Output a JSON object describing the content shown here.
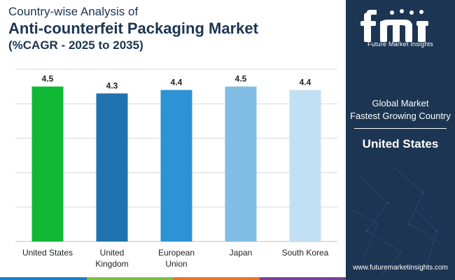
{
  "header": {
    "subtitle": "Country-wise Analysis of",
    "title": "Anti-counterfeit Packaging Market",
    "cagr_line": "(%CAGR - 2025 to 2035)"
  },
  "chart_data": {
    "type": "bar",
    "categories": [
      [
        "United States"
      ],
      [
        "United",
        "Kingdom"
      ],
      [
        "European",
        "Union"
      ],
      [
        "Japan"
      ],
      [
        "South Korea"
      ]
    ],
    "values": [
      4.5,
      4.3,
      4.4,
      4.5,
      4.4
    ],
    "value_labels": [
      "4.5",
      "4.3",
      "4.4",
      "4.5",
      "4.4"
    ],
    "colors": [
      "#10b836",
      "#1f72ae",
      "#2e93d6",
      "#82bde3",
      "#c2e0f3"
    ],
    "ylim": [
      0,
      5
    ],
    "gridlines": [
      1,
      2,
      3,
      4,
      5
    ],
    "grid": true,
    "title": "",
    "xlabel": "",
    "ylabel": ""
  },
  "panel": {
    "brand_text": "Future Market Insights",
    "line1": "Global Market",
    "line2": "Fastest Growing Country",
    "country": "United States",
    "website": "www.futuremarketinsights.com",
    "bg_color": "#1c3552"
  },
  "strip_colors": [
    "#1e7bc4",
    "#7ac142",
    "#e8732a",
    "#7b3f98"
  ]
}
